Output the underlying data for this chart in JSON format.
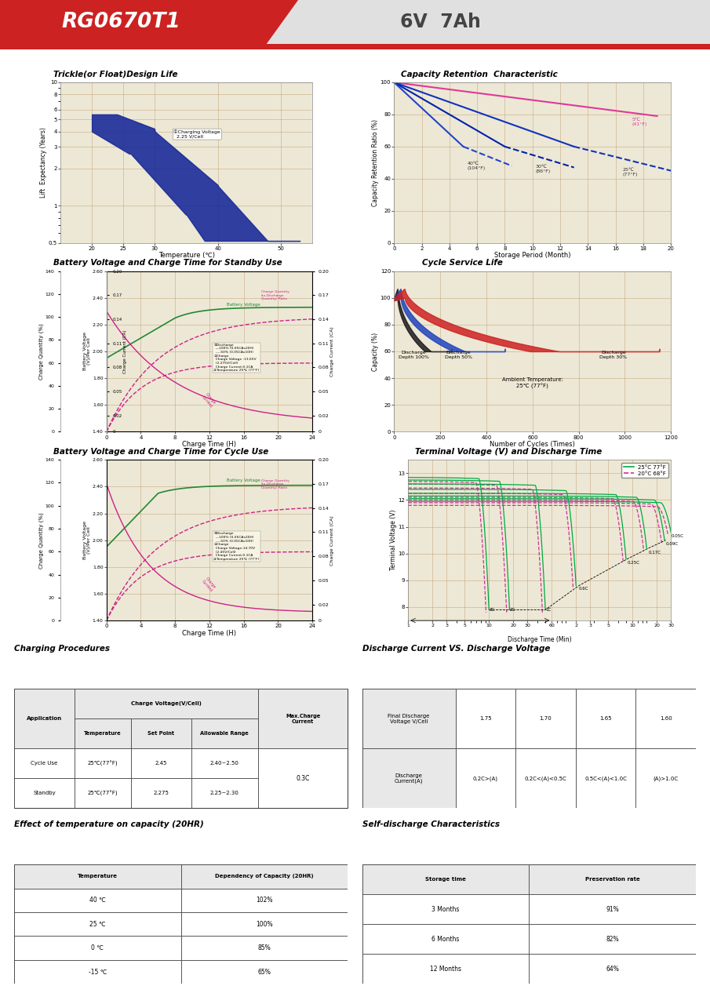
{
  "title_model": "RG0670T1",
  "title_spec": "6V  7Ah",
  "header_red": "#cc2222",
  "page_bg": "#ffffff",
  "chart_bg": "#ede8d5",
  "grid_color": "#c8a882",
  "section_titles": {
    "trickle": "Trickle(or Float)Design Life",
    "capacity": "Capacity Retention  Characteristic",
    "batt_standby": "Battery Voltage and Charge Time for Standby Use",
    "cycle_service": "Cycle Service Life",
    "batt_cycle": "Battery Voltage and Charge Time for Cycle Use",
    "terminal": "Terminal Voltage (V) and Discharge Time"
  },
  "charging_table": {
    "title": "Charging Procedures",
    "rows": [
      [
        "Cycle Use",
        "25℃(77°F)",
        "2.45",
        "2.40~2.50"
      ],
      [
        "Standby",
        "25℃(77°F)",
        "2.275",
        "2.25~2.30"
      ]
    ],
    "max_charge": "0.3C"
  },
  "discharge_table": {
    "title": "Discharge Current VS. Discharge Voltage",
    "row1_label": "Final Discharge\nVoltage V/Cell",
    "row1_vals": [
      "1.75",
      "1.70",
      "1.65",
      "1.60"
    ],
    "row2_label": "Discharge\nCurrent(A)",
    "row2_vals": [
      "0.2C>(A)",
      "0.2C<(A)<0.5C",
      "0.5C<(A)<1.0C",
      "(A)>1.0C"
    ]
  },
  "temp_capacity_table": {
    "title": "Effect of temperature on capacity (20HR)",
    "headers": [
      "Temperature",
      "Dependency of Capacity (20HR)"
    ],
    "rows": [
      [
        "40 ℃",
        "102%"
      ],
      [
        "25 ℃",
        "100%"
      ],
      [
        "0 ℃",
        "85%"
      ],
      [
        "-15 ℃",
        "65%"
      ]
    ]
  },
  "self_discharge_table": {
    "title": "Self-discharge Characteristics",
    "headers": [
      "Storage time",
      "Preservation rate"
    ],
    "rows": [
      [
        "3 Months",
        "91%"
      ],
      [
        "6 Months",
        "82%"
      ],
      [
        "12 Months",
        "64%"
      ]
    ]
  }
}
